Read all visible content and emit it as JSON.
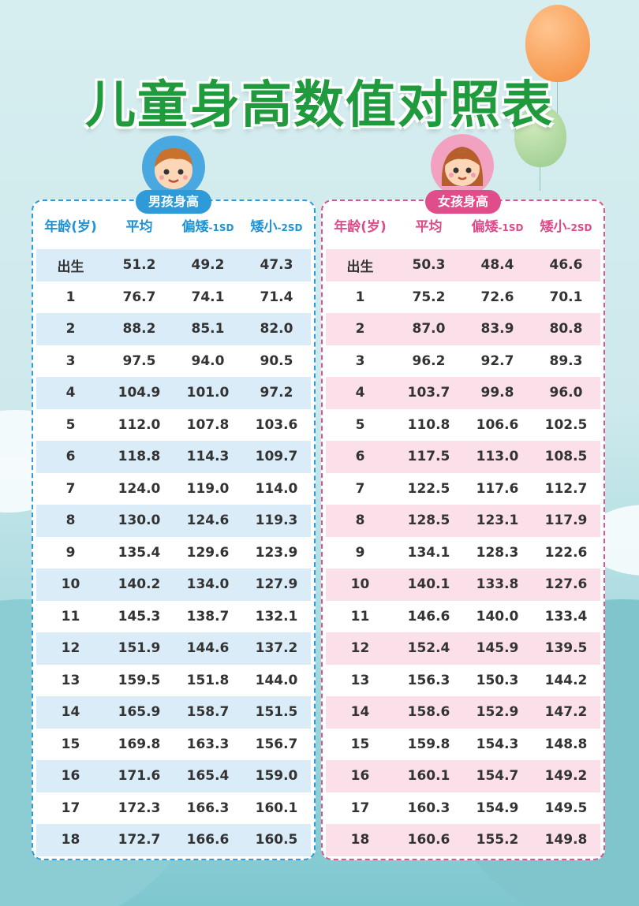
{
  "title": "儿童身高数值对照表",
  "colors": {
    "title": "#1f9a3c",
    "boy_accent": "#2f9ad8",
    "girl_accent": "#e04d8b",
    "boy_stripe": "#d9ecf8",
    "girl_stripe": "#fbe0ea"
  },
  "headers": {
    "age": "年龄(岁)",
    "avg": "平均",
    "low1_main": "偏矮",
    "low1_suffix": "-1SD",
    "low2_main": "矮小",
    "low2_suffix": "-2SD"
  },
  "boys": {
    "label": "男孩身高",
    "rows": [
      [
        "出生",
        "51.2",
        "49.2",
        "47.3"
      ],
      [
        "1",
        "76.7",
        "74.1",
        "71.4"
      ],
      [
        "2",
        "88.2",
        "85.1",
        "82.0"
      ],
      [
        "3",
        "97.5",
        "94.0",
        "90.5"
      ],
      [
        "4",
        "104.9",
        "101.0",
        "97.2"
      ],
      [
        "5",
        "112.0",
        "107.8",
        "103.6"
      ],
      [
        "6",
        "118.8",
        "114.3",
        "109.7"
      ],
      [
        "7",
        "124.0",
        "119.0",
        "114.0"
      ],
      [
        "8",
        "130.0",
        "124.6",
        "119.3"
      ],
      [
        "9",
        "135.4",
        "129.6",
        "123.9"
      ],
      [
        "10",
        "140.2",
        "134.0",
        "127.9"
      ],
      [
        "11",
        "145.3",
        "138.7",
        "132.1"
      ],
      [
        "12",
        "151.9",
        "144.6",
        "137.2"
      ],
      [
        "13",
        "159.5",
        "151.8",
        "144.0"
      ],
      [
        "14",
        "165.9",
        "158.7",
        "151.5"
      ],
      [
        "15",
        "169.8",
        "163.3",
        "156.7"
      ],
      [
        "16",
        "171.6",
        "165.4",
        "159.0"
      ],
      [
        "17",
        "172.3",
        "166.3",
        "160.1"
      ],
      [
        "18",
        "172.7",
        "166.6",
        "160.5"
      ]
    ]
  },
  "girls": {
    "label": "女孩身高",
    "rows": [
      [
        "出生",
        "50.3",
        "48.4",
        "46.6"
      ],
      [
        "1",
        "75.2",
        "72.6",
        "70.1"
      ],
      [
        "2",
        "87.0",
        "83.9",
        "80.8"
      ],
      [
        "3",
        "96.2",
        "92.7",
        "89.3"
      ],
      [
        "4",
        "103.7",
        "99.8",
        "96.0"
      ],
      [
        "5",
        "110.8",
        "106.6",
        "102.5"
      ],
      [
        "6",
        "117.5",
        "113.0",
        "108.5"
      ],
      [
        "7",
        "122.5",
        "117.6",
        "112.7"
      ],
      [
        "8",
        "128.5",
        "123.1",
        "117.9"
      ],
      [
        "9",
        "134.1",
        "128.3",
        "122.6"
      ],
      [
        "10",
        "140.1",
        "133.8",
        "127.6"
      ],
      [
        "11",
        "146.6",
        "140.0",
        "133.4"
      ],
      [
        "12",
        "152.4",
        "145.9",
        "139.5"
      ],
      [
        "13",
        "156.3",
        "150.3",
        "144.2"
      ],
      [
        "14",
        "158.6",
        "152.9",
        "147.2"
      ],
      [
        "15",
        "159.8",
        "154.3",
        "148.8"
      ],
      [
        "16",
        "160.1",
        "154.7",
        "149.2"
      ],
      [
        "17",
        "160.3",
        "154.9",
        "149.5"
      ],
      [
        "18",
        "160.6",
        "155.2",
        "149.8"
      ]
    ]
  }
}
